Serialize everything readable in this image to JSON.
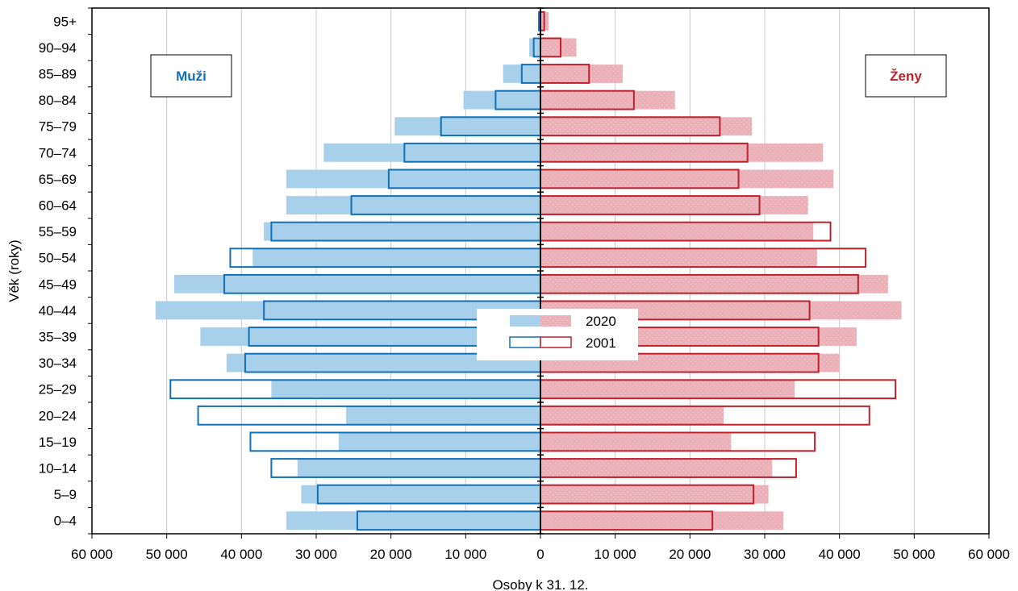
{
  "chart_data": {
    "type": "bar",
    "orientation": "horizontal",
    "layout": "population-pyramid",
    "xlabel": "Osoby k 31. 12.",
    "ylabel": "Věk (roky)",
    "xlim": [
      -60000,
      60000
    ],
    "x_ticks": [
      -60000,
      -50000,
      -40000,
      -30000,
      -20000,
      -10000,
      0,
      10000,
      20000,
      30000,
      40000,
      50000,
      60000
    ],
    "x_tick_labels": [
      "60 000",
      "50 000",
      "40 000",
      "30 000",
      "20 000",
      "10 000",
      "0",
      "10 000",
      "20 000",
      "30 000",
      "40 000",
      "50 000",
      "60 000"
    ],
    "grid": "vertical",
    "categories": [
      "0–4",
      "5–9",
      "10–14",
      "15–19",
      "20–24",
      "25–29",
      "30–34",
      "35–39",
      "40–44",
      "45–49",
      "50–54",
      "55–59",
      "60–64",
      "65–69",
      "70–74",
      "75–79",
      "80–84",
      "85–89",
      "90–94",
      "95+"
    ],
    "side_labels": {
      "left": "Muži",
      "right": "Ženy"
    },
    "legend": {
      "position": "center",
      "entries": [
        {
          "label": "2020",
          "style": "filled"
        },
        {
          "label": "2001",
          "style": "outline"
        }
      ]
    },
    "series": [
      {
        "name": "2020",
        "sex": "Muži",
        "style": "filled",
        "values": [
          34000,
          32000,
          32500,
          27000,
          26000,
          36000,
          42000,
          45500,
          51500,
          49000,
          38500,
          37000,
          34000,
          34000,
          29000,
          19500,
          10300,
          5000,
          1500,
          300
        ]
      },
      {
        "name": "2020",
        "sex": "Ženy",
        "style": "filled",
        "values": [
          32500,
          30500,
          31000,
          25500,
          24500,
          34000,
          40000,
          42300,
          48300,
          46500,
          37000,
          36500,
          35800,
          39200,
          37800,
          28300,
          18000,
          11000,
          4800,
          1100
        ]
      },
      {
        "name": "2001",
        "sex": "Muži",
        "style": "outline",
        "values": [
          24500,
          29800,
          36000,
          38800,
          45800,
          49500,
          39500,
          39000,
          37000,
          42300,
          41500,
          36000,
          25300,
          20300,
          18200,
          13300,
          6000,
          2500,
          900,
          200
        ]
      },
      {
        "name": "2001",
        "sex": "Ženy",
        "style": "outline",
        "values": [
          23000,
          28500,
          34200,
          36700,
          44000,
          47500,
          37200,
          37200,
          36000,
          42500,
          43500,
          38800,
          29300,
          26500,
          27700,
          24000,
          12500,
          6500,
          2700,
          500
        ]
      }
    ]
  },
  "colors": {
    "male_fill": "#a8d0ea",
    "male_outline": "#1070b8",
    "female_fill": "#ebb0b8",
    "female_outline": "#c0202c",
    "grid": "#c8c8c8",
    "axis": "#000000"
  }
}
